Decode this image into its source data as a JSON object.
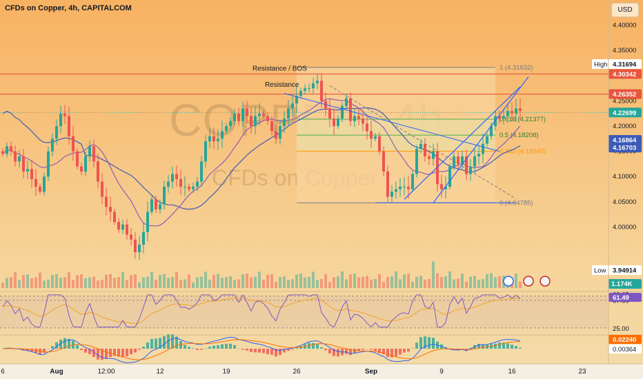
{
  "header": {
    "title": "CFDs on Copper, 4h, CAPITALCOM",
    "currency": "USD"
  },
  "watermark": {
    "symbol": "COPPER, 4h",
    "name": "CFDs on Copper"
  },
  "colors": {
    "up": "#26a69a",
    "down": "#ef5350",
    "resistance": "#e8553e",
    "ma_blue": "#3d5ab8",
    "ma_purple": "#8e5db7",
    "trend": "#2962ff",
    "fib_zone": "#f8d39b"
  },
  "chart_data": [
    {
      "type": "candlestick",
      "name": "price",
      "ylim": [
        3.92,
        4.42
      ],
      "yticks": [
        4.4,
        4.35,
        4.3,
        4.25,
        4.2,
        4.15,
        4.1,
        4.05,
        4.0
      ],
      "ytick_labels": [
        "4.40000",
        "4.35000",
        "4.30000",
        "4.25000",
        "4.20000",
        "4.15000",
        "4.10000",
        "4.05000",
        "4.00000"
      ],
      "xticks": [
        {
          "label": "6",
          "bar": 0
        },
        {
          "label": "Aug",
          "bar": 13
        },
        {
          "label": "12:00",
          "bar": 25
        },
        {
          "label": "12",
          "bar": 38
        },
        {
          "label": "19",
          "bar": 54
        },
        {
          "label": "26",
          "bar": 71
        },
        {
          "label": "Sep",
          "bar": 89
        },
        {
          "label": "9",
          "bar": 106
        },
        {
          "label": "16",
          "bar": 123
        },
        {
          "label": "23",
          "bar": 140
        }
      ],
      "x_span_bars": 155,
      "closes": [
        4.145,
        4.16,
        4.15,
        4.13,
        4.14,
        4.11,
        4.115,
        4.095,
        4.08,
        4.07,
        4.1,
        4.15,
        4.175,
        4.2,
        4.225,
        4.22,
        4.18,
        4.15,
        4.12,
        4.11,
        4.14,
        4.16,
        4.13,
        4.09,
        4.06,
        4.04,
        4.03,
        4.01,
        3.995,
        4.005,
        3.985,
        3.975,
        3.95,
        3.965,
        3.99,
        4.03,
        4.055,
        4.035,
        4.045,
        4.08,
        4.09,
        4.105,
        4.095,
        4.08,
        4.08,
        4.075,
        4.08,
        4.09,
        4.13,
        4.17,
        4.18,
        4.17,
        4.175,
        4.19,
        4.2,
        4.21,
        4.225,
        4.21,
        4.235,
        4.22,
        4.2,
        4.22,
        4.225,
        4.22,
        4.21,
        4.19,
        4.175,
        4.2,
        4.215,
        4.235,
        4.245,
        4.26,
        4.27,
        4.275,
        4.275,
        4.285,
        4.29,
        4.25,
        4.235,
        4.215,
        4.2,
        4.215,
        4.24,
        4.255,
        4.21,
        4.22,
        4.215,
        4.205,
        4.19,
        4.175,
        4.18,
        4.15,
        4.11,
        4.06,
        4.07,
        4.075,
        4.08,
        4.08,
        4.075,
        4.105,
        4.155,
        4.165,
        4.14,
        4.135,
        4.15,
        4.085,
        4.075,
        4.08,
        4.12,
        4.14,
        4.125,
        4.14,
        4.105,
        4.12,
        4.14,
        4.145,
        4.165,
        4.18,
        4.2,
        4.22,
        4.215,
        4.22,
        4.23,
        4.225,
        4.235,
        4.23
      ],
      "start_open": 4.15,
      "last": 4.22699,
      "price_labels": [
        {
          "text": "High",
          "value": "4.31694",
          "type": "neutral",
          "price": 4.31694
        },
        {
          "text": "",
          "value": "4.30342",
          "type": "resistance",
          "price": 4.30342
        },
        {
          "text": "",
          "value": "4.26352",
          "type": "resistance",
          "price": 4.26352
        },
        {
          "text": "",
          "value": "4.22699",
          "type": "last",
          "price": 4.22699
        },
        {
          "text": "",
          "value": "4.16864",
          "type": "ma_blue",
          "price": 4.16864
        },
        {
          "text": "",
          "value": "4.16703",
          "type": "ma_blue",
          "price": 4.16703
        },
        {
          "text": "Low",
          "value": "3.94914",
          "type": "neutral",
          "price": 3.94914
        }
      ],
      "horizontal_lines": [
        {
          "price": 4.30342,
          "color": "resistance"
        },
        {
          "price": 4.26352,
          "color": "resistance"
        }
      ],
      "fibonacci": {
        "from_bar": 71,
        "to_bar": 119,
        "levels": [
          {
            "ratio": "1",
            "price": 4.31632,
            "label": "1 (4.31632)"
          },
          {
            "ratio": "0.618",
            "price": 4.21377,
            "label": "0.618 (4.21377)"
          },
          {
            "ratio": "0.5",
            "price": 4.18208,
            "label": "0.5 (4.18208)"
          },
          {
            "ratio": "0.382",
            "price": 4.1504,
            "label": "0.382 (4.15040)"
          },
          {
            "ratio": "0",
            "price": 4.04785,
            "label": "0 (4.04785)"
          }
        ]
      },
      "annotations": [
        {
          "text": "Resistance / BOS",
          "bar": 65,
          "price": 4.31
        },
        {
          "text": "Resistance",
          "bar": 68,
          "price": 4.278
        }
      ],
      "volume_label": "1.174K"
    },
    {
      "type": "line",
      "name": "RSI",
      "ylim": [
        20,
        68
      ],
      "levels": [
        {
          "label": "62.65",
          "value": 62.65
        },
        {
          "label": "57.66",
          "value": 57.66
        },
        {
          "label": "25.00",
          "value": 25.0
        }
      ],
      "current": {
        "label": "61.49",
        "value": 61.49
      }
    },
    {
      "type": "bar",
      "name": "MACD",
      "current": [
        {
          "label": "0.02240"
        },
        {
          "label": "0.00364"
        }
      ]
    }
  ]
}
